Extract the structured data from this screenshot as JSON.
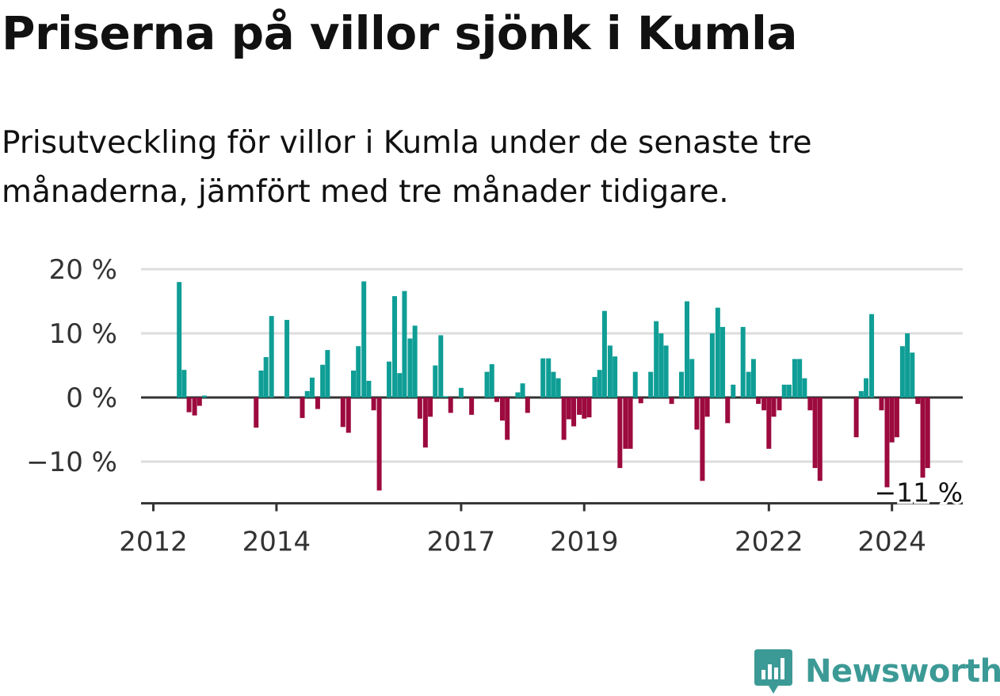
{
  "title": "Priserna på villor sjönk i Kumla",
  "subtitle": "Prisutveckling för villor i Kumla under de senaste tre månaderna, jämfört med tre månader tidigare.",
  "brand": {
    "name": "Newsworthy",
    "color": "#3c9a96",
    "icon": "bar-chart-pin-icon"
  },
  "colors": {
    "positive": "#0f9e96",
    "negative": "#9c0a3e",
    "grid": "#dddddd",
    "baseline": "#333333"
  },
  "chart_data": {
    "type": "bar",
    "ylabel": "",
    "xlabel": "",
    "ylim": [
      -16.5,
      20
    ],
    "y_ticks": [
      {
        "value": 20,
        "label": "20 %"
      },
      {
        "value": 10,
        "label": "10 %"
      },
      {
        "value": 0,
        "label": "0 %"
      },
      {
        "value": -10,
        "label": "−10 %"
      }
    ],
    "x_ticks": [
      {
        "value": 2012.0,
        "label": "2012"
      },
      {
        "value": 2014.0,
        "label": "2014"
      },
      {
        "value": 2017.0,
        "label": "2017"
      },
      {
        "value": 2019.0,
        "label": "2019"
      },
      {
        "value": 2022.0,
        "label": "2022"
      },
      {
        "value": 2024.0,
        "label": "2024"
      }
    ],
    "xlim": [
      2011.8,
      2025.15
    ],
    "last_value_label": "−11 %",
    "series": [
      {
        "values": [
          [
            2012.42,
            18
          ],
          [
            2012.5,
            4.3
          ],
          [
            2012.58,
            -2.3
          ],
          [
            2012.67,
            -2.8
          ],
          [
            2012.75,
            -1.3
          ],
          [
            2012.83,
            0.3
          ],
          [
            2013.67,
            -4.7
          ],
          [
            2013.75,
            4.2
          ],
          [
            2013.83,
            6.3
          ],
          [
            2013.92,
            12.7
          ],
          [
            2014.17,
            12.1
          ],
          [
            2014.42,
            -3.2
          ],
          [
            2014.5,
            1
          ],
          [
            2014.58,
            3.1
          ],
          [
            2014.67,
            -1.8
          ],
          [
            2014.75,
            5.1
          ],
          [
            2014.83,
            7.4
          ],
          [
            2015.08,
            -4.6
          ],
          [
            2015.17,
            -5.5
          ],
          [
            2015.25,
            4.2
          ],
          [
            2015.33,
            8
          ],
          [
            2015.42,
            18.1
          ],
          [
            2015.5,
            2.6
          ],
          [
            2015.58,
            -2
          ],
          [
            2015.67,
            -14.5
          ],
          [
            2015.83,
            5.6
          ],
          [
            2015.92,
            15.8
          ],
          [
            2016.0,
            3.8
          ],
          [
            2016.08,
            16.6
          ],
          [
            2016.17,
            9.2
          ],
          [
            2016.25,
            11.2
          ],
          [
            2016.33,
            -3.3
          ],
          [
            2016.42,
            -7.8
          ],
          [
            2016.5,
            -3
          ],
          [
            2016.58,
            5
          ],
          [
            2016.67,
            9.7
          ],
          [
            2016.75,
            0.2
          ],
          [
            2016.83,
            -2.4
          ],
          [
            2017.0,
            1.5
          ],
          [
            2017.17,
            -2.7
          ],
          [
            2017.42,
            4
          ],
          [
            2017.5,
            5.2
          ],
          [
            2017.58,
            -0.7
          ],
          [
            2017.67,
            -3.6
          ],
          [
            2017.75,
            -6.6
          ],
          [
            2017.92,
            0.8
          ],
          [
            2018.0,
            2.2
          ],
          [
            2018.08,
            -2.4
          ],
          [
            2018.33,
            6.1
          ],
          [
            2018.42,
            6.1
          ],
          [
            2018.5,
            4
          ],
          [
            2018.58,
            3
          ],
          [
            2018.67,
            -6.6
          ],
          [
            2018.75,
            -3.4
          ],
          [
            2018.83,
            -4.5
          ],
          [
            2018.92,
            -2.7
          ],
          [
            2019.0,
            -3.3
          ],
          [
            2019.08,
            -3.1
          ],
          [
            2019.17,
            3.2
          ],
          [
            2019.25,
            4.3
          ],
          [
            2019.33,
            13.5
          ],
          [
            2019.42,
            8.1
          ],
          [
            2019.5,
            6.4
          ],
          [
            2019.58,
            -11
          ],
          [
            2019.67,
            -8
          ],
          [
            2019.75,
            -8
          ],
          [
            2019.83,
            4
          ],
          [
            2019.92,
            -0.9
          ],
          [
            2020.08,
            4
          ],
          [
            2020.17,
            11.9
          ],
          [
            2020.25,
            10
          ],
          [
            2020.33,
            8.1
          ],
          [
            2020.42,
            -1
          ],
          [
            2020.58,
            4
          ],
          [
            2020.67,
            15
          ],
          [
            2020.75,
            6
          ],
          [
            2020.83,
            -5
          ],
          [
            2020.92,
            -13
          ],
          [
            2021.0,
            -3
          ],
          [
            2021.08,
            10
          ],
          [
            2021.17,
            14
          ],
          [
            2021.25,
            11
          ],
          [
            2021.33,
            -4
          ],
          [
            2021.42,
            2
          ],
          [
            2021.58,
            11
          ],
          [
            2021.67,
            4
          ],
          [
            2021.75,
            6
          ],
          [
            2021.83,
            -1
          ],
          [
            2021.92,
            -2
          ],
          [
            2022.0,
            -8
          ],
          [
            2022.08,
            -3
          ],
          [
            2022.17,
            -2
          ],
          [
            2022.25,
            2
          ],
          [
            2022.33,
            2
          ],
          [
            2022.42,
            6
          ],
          [
            2022.5,
            6
          ],
          [
            2022.58,
            3
          ],
          [
            2022.67,
            -2
          ],
          [
            2022.75,
            -11
          ],
          [
            2022.83,
            -13
          ],
          [
            2023.42,
            -6.2
          ],
          [
            2023.5,
            1
          ],
          [
            2023.58,
            3
          ],
          [
            2023.67,
            13
          ],
          [
            2023.83,
            -2
          ],
          [
            2023.92,
            -14
          ],
          [
            2024.0,
            -7
          ],
          [
            2024.08,
            -6.2
          ],
          [
            2024.17,
            8
          ],
          [
            2024.25,
            10
          ],
          [
            2024.33,
            7
          ],
          [
            2024.42,
            -1
          ],
          [
            2024.5,
            -12.5
          ],
          [
            2024.58,
            -11
          ]
        ]
      }
    ]
  }
}
